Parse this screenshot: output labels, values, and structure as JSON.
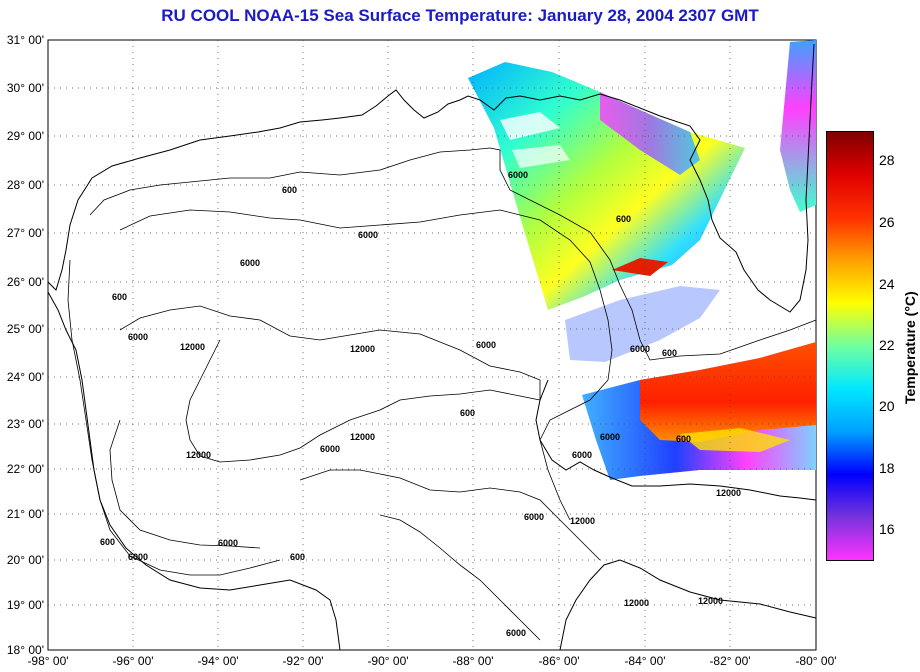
{
  "title": "RU COOL  NOAA-15  Sea Surface Temperature:  January 28, 2004 2307 GMT",
  "lat_labels": [
    "31° 00'",
    "30° 00'",
    "29° 00'",
    "28° 00'",
    "27° 00'",
    "26° 00'",
    "25° 00'",
    "24° 00'",
    "23° 00'",
    "22° 00'",
    "21° 00'",
    "20° 00'",
    "19° 00'",
    "18° 00'"
  ],
  "lon_labels": [
    "-98° 00'",
    "-96° 00'",
    "-94° 00'",
    "-92° 00'",
    "-90° 00'",
    "-88° 00'",
    "-86° 00'",
    "-84° 00'",
    "-82° 00'",
    "-80° 00'"
  ],
  "colorbar": {
    "label": "Temperature (°C)",
    "ticks": [
      "28",
      "26",
      "24",
      "22",
      "20",
      "18",
      "16"
    ],
    "min": 15,
    "max": 29,
    "colors": [
      "#ff33ff",
      "#7733dd",
      "#0000ff",
      "#00a0ff",
      "#00e8ff",
      "#70ffa0",
      "#ffff00",
      "#ffa000",
      "#ff3000",
      "#e00000",
      "#800000"
    ]
  },
  "contour_labels": [
    "600",
    "6000",
    "12000"
  ],
  "map_extent": {
    "lon_min": -98,
    "lon_max": -80,
    "lat_min": 18,
    "lat_max": 31
  }
}
